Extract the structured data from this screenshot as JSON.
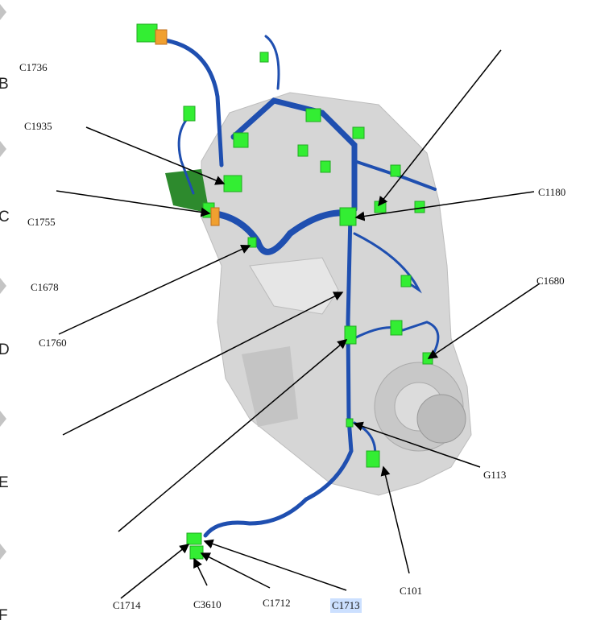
{
  "zone_markers": [
    "B",
    "C",
    "D",
    "E",
    "F"
  ],
  "labels": {
    "c1736": "C1736",
    "c1935": "C1935",
    "c1755": "C1755",
    "c1678": "C1678",
    "c1760": "C1760",
    "c1180": "C1180",
    "c1680": "C1680",
    "g113": "G113",
    "c101": "C101",
    "c1714": "C1714",
    "c3610": "C3610",
    "c1712": "C1712",
    "c1713": "C1713"
  },
  "colors": {
    "engine": "#d4d4d4",
    "harness": "#1f4fb0",
    "connector": "#33ee33",
    "connector_orange": "#f0a030",
    "highlight": "#cce0ff"
  }
}
